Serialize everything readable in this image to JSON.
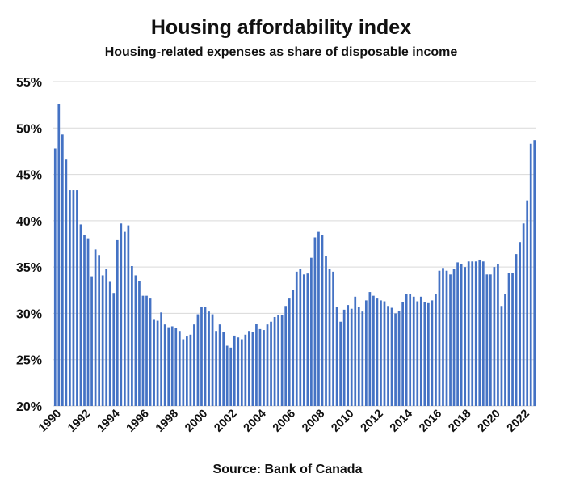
{
  "chart_data": {
    "type": "bar",
    "title": "Housing affordability index",
    "subtitle": "Housing-related expenses as share of disposable income",
    "source": "Source:  Bank of Canada",
    "xlabel": "",
    "ylabel": "",
    "frequency": "quarterly",
    "start": "1990-Q1",
    "ylim": [
      20,
      55
    ],
    "yticks": [
      20,
      25,
      30,
      35,
      40,
      45,
      50,
      55
    ],
    "ytick_labels": [
      "20%",
      "25%",
      "30%",
      "35%",
      "40%",
      "45%",
      "50%",
      "55%"
    ],
    "xtick_labels": [
      "1990",
      "1992",
      "1994",
      "1996",
      "1998",
      "2000",
      "2002",
      "2004",
      "2006",
      "2008",
      "2010",
      "2012",
      "2014",
      "2016",
      "2018",
      "2020",
      "2022"
    ],
    "grid": true,
    "legend": "none",
    "bar_color": "#4472c4",
    "values": [
      47.8,
      52.6,
      49.3,
      46.6,
      43.3,
      43.3,
      43.3,
      39.6,
      38.5,
      38.1,
      34.0,
      36.9,
      36.3,
      34.1,
      34.8,
      33.4,
      32.2,
      37.9,
      39.7,
      38.8,
      39.5,
      35.1,
      34.1,
      33.5,
      31.9,
      31.9,
      31.6,
      29.3,
      29.2,
      30.1,
      28.8,
      28.5,
      28.6,
      28.4,
      28.1,
      27.2,
      27.5,
      27.7,
      28.8,
      29.9,
      30.7,
      30.7,
      30.2,
      29.9,
      28.1,
      28.8,
      28.0,
      26.5,
      26.3,
      27.6,
      27.4,
      27.2,
      27.7,
      28.1,
      28.0,
      28.9,
      28.3,
      28.2,
      28.8,
      29.1,
      29.6,
      29.8,
      29.8,
      30.8,
      31.6,
      32.5,
      34.5,
      34.8,
      34.2,
      34.3,
      36.0,
      38.2,
      38.8,
      38.5,
      36.2,
      34.8,
      34.5,
      30.7,
      29.1,
      30.4,
      30.9,
      30.5,
      31.8,
      30.7,
      30.2,
      31.4,
      32.3,
      31.9,
      31.6,
      31.4,
      31.3,
      30.8,
      30.6,
      30.0,
      30.3,
      31.2,
      32.1,
      32.1,
      31.8,
      31.3,
      31.8,
      31.2,
      31.1,
      31.4,
      32.1,
      34.6,
      34.9,
      34.6,
      34.2,
      34.8,
      35.5,
      35.3,
      35.0,
      35.6,
      35.6,
      35.6,
      35.8,
      35.6,
      34.2,
      34.2,
      35.0,
      35.3,
      30.8,
      32.1,
      34.4,
      34.4,
      36.4,
      37.7,
      39.7,
      42.2,
      48.3,
      48.7
    ]
  }
}
